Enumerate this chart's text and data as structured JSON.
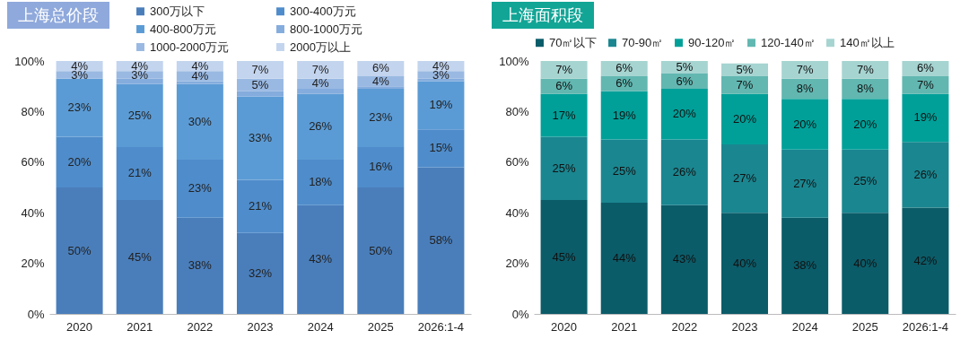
{
  "chart_data": [
    {
      "type": "bar",
      "title": "上海总价段",
      "stacked": true,
      "legend": "top",
      "categories": [
        "2020",
        "2021",
        "2022",
        "2023",
        "2024",
        "2025",
        "2026:1-4"
      ],
      "ylim": [
        0,
        100
      ],
      "yticks": [
        {
          "value": 0,
          "label": "0%"
        },
        {
          "value": 20,
          "label": "20%"
        },
        {
          "value": 40,
          "label": "40%"
        },
        {
          "value": 60,
          "label": "60%"
        },
        {
          "value": 80,
          "label": "80%"
        },
        {
          "value": 100,
          "label": "100%"
        }
      ],
      "series": [
        {
          "name": "300万以下",
          "color": "#4a7ebb",
          "values": [
            50,
            45,
            38,
            32,
            43,
            50,
            58
          ],
          "value_labels": [
            "50%",
            "45%",
            "38%",
            "32%",
            "43%",
            "50%",
            "58%"
          ]
        },
        {
          "name": "300-400万元",
          "color": "#4f8ccb",
          "values": [
            20,
            21,
            23,
            21,
            18,
            16,
            15
          ],
          "value_labels": [
            "20%",
            "21%",
            "23%",
            "21%",
            "18%",
            "16%",
            "15%"
          ]
        },
        {
          "name": "400-800万元",
          "color": "#5b9bd5",
          "values": [
            23,
            25,
            30,
            33,
            26,
            23,
            19
          ],
          "value_labels": [
            "23%",
            "25%",
            "30%",
            "33%",
            "26%",
            "23%",
            "19%"
          ]
        },
        {
          "name": "800-1000万元",
          "color": "#84acdd",
          "values": [
            0,
            2,
            1,
            2,
            2,
            1,
            1
          ],
          "value_labels": [
            null,
            null,
            null,
            null,
            null,
            null,
            null
          ]
        },
        {
          "name": "1000-2000万元",
          "color": "#9ab9e2",
          "values": [
            3,
            3,
            4,
            5,
            4,
            4,
            3
          ],
          "value_labels": [
            "3%",
            "3%",
            "4%",
            "5%",
            "4%",
            "4%",
            "3%"
          ]
        },
        {
          "name": "2000万以上",
          "color": "#c3d4ee",
          "values": [
            4,
            4,
            4,
            7,
            7,
            6,
            4
          ],
          "value_labels": [
            "4%",
            "4%",
            "4%",
            "7%",
            "7%",
            "6%",
            "4%"
          ]
        }
      ]
    },
    {
      "type": "bar",
      "title": "上海面积段",
      "stacked": true,
      "legend": "top",
      "categories": [
        "2020",
        "2021",
        "2022",
        "2023",
        "2024",
        "2025",
        "2026:1-4"
      ],
      "ylim": [
        0,
        100
      ],
      "yticks": [
        {
          "value": 0,
          "label": "0%"
        },
        {
          "value": 20,
          "label": "20%"
        },
        {
          "value": 40,
          "label": "40%"
        },
        {
          "value": 60,
          "label": "60%"
        },
        {
          "value": 80,
          "label": "80%"
        },
        {
          "value": 100,
          "label": "100%"
        }
      ],
      "series": [
        {
          "name": "70㎡以下",
          "color": "#0b5c69",
          "values": [
            45,
            44,
            43,
            40,
            38,
            40,
            42
          ],
          "value_labels": [
            "45%",
            "44%",
            "43%",
            "40%",
            "38%",
            "40%",
            "42%"
          ]
        },
        {
          "name": "70-90㎡",
          "color": "#1a8690",
          "values": [
            25,
            25,
            26,
            27,
            27,
            25,
            26
          ],
          "value_labels": [
            "25%",
            "25%",
            "26%",
            "27%",
            "27%",
            "25%",
            "26%"
          ]
        },
        {
          "name": "90-120㎡",
          "color": "#00a099",
          "values": [
            17,
            19,
            20,
            20,
            20,
            20,
            19
          ],
          "value_labels": [
            "17%",
            "19%",
            "20%",
            "20%",
            "20%",
            "20%",
            "19%"
          ]
        },
        {
          "name": "120-140㎡",
          "color": "#62b7b1",
          "values": [
            6,
            6,
            6,
            7,
            8,
            8,
            7
          ],
          "value_labels": [
            "6%",
            "6%",
            "6%",
            "7%",
            "8%",
            "8%",
            "7%"
          ]
        },
        {
          "name": "140㎡以上",
          "color": "#a6d4d1",
          "values": [
            7,
            6,
            5,
            5,
            7,
            7,
            6
          ],
          "value_labels": [
            "7%",
            "6%",
            "5%",
            "5%",
            "7%",
            "7%",
            "6%"
          ]
        }
      ]
    }
  ]
}
